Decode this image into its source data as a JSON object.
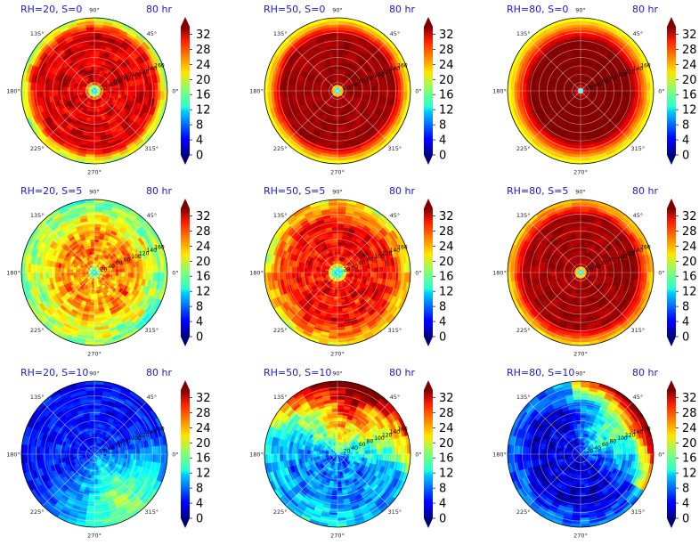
{
  "figure": {
    "colorbar_ticks": [
      0,
      4,
      8,
      12,
      16,
      20,
      24,
      28,
      32
    ],
    "colormap": "jet",
    "vmin": 0,
    "vmax": 34,
    "radial_ticks": [
      20,
      40,
      60,
      80,
      100,
      120,
      140,
      160
    ],
    "radial_max": 175,
    "angle_ticks": [
      "0°",
      "45°",
      "90°",
      "135°",
      "180°",
      "225°",
      "270°",
      "315°"
    ]
  },
  "chart_data": [
    {
      "type": "heatmap",
      "projection": "polar",
      "title": "RH=20, S=0",
      "time_label": "80 hr",
      "pattern": {
        "eye": 8,
        "inner": 22,
        "peak": 0,
        "ring_out": 145,
        "peak_val": 31,
        "out_val": 18,
        "noise": 4
      }
    },
    {
      "type": "heatmap",
      "projection": "polar",
      "title": "RH=50, S=0",
      "time_label": "80 hr",
      "pattern": {
        "eye": 6,
        "inner": 16,
        "peak": 0,
        "ring_out": 135,
        "peak_val": 33,
        "out_val": 20,
        "noise": 1.5
      }
    },
    {
      "type": "heatmap",
      "projection": "polar",
      "title": "RH=80, S=0",
      "time_label": "80 hr",
      "pattern": {
        "eye": 4,
        "inner": 12,
        "peak": 0,
        "ring_out": 120,
        "peak_val": 34,
        "out_val": 20,
        "noise": 1
      }
    },
    {
      "type": "heatmap",
      "projection": "polar",
      "title": "RH=20, S=5",
      "time_label": "80 hr",
      "pattern": {
        "eye": 6,
        "inner": 20,
        "peak": 0,
        "ring_out": 85,
        "peak_val": 25,
        "out_val": 16,
        "noise": 6
      }
    },
    {
      "type": "heatmap",
      "projection": "polar",
      "title": "RH=50, S=5",
      "time_label": "80 hr",
      "pattern": {
        "eye": 10,
        "inner": 28,
        "peak": 0,
        "ring_out": 120,
        "peak_val": 30,
        "out_val": 21,
        "noise": 5
      }
    },
    {
      "type": "heatmap",
      "projection": "polar",
      "title": "RH=80, S=5",
      "time_label": "80 hr",
      "pattern": {
        "eye": 6,
        "inner": 16,
        "peak": 0,
        "ring_out": 135,
        "peak_val": 33,
        "out_val": 22,
        "noise": 2
      }
    },
    {
      "type": "heatmap",
      "projection": "polar",
      "title": "RH=20, S=10",
      "time_label": "80 hr",
      "pattern": {
        "base": 5,
        "quad": 13,
        "qang": 300,
        "qspread": 55,
        "noise": 4,
        "rim": 0
      }
    },
    {
      "type": "heatmap",
      "projection": "polar",
      "title": "RH=50, S=10",
      "time_label": "80 hr",
      "pattern": {
        "base": 8,
        "quad": 22,
        "qang": 75,
        "qspread": 65,
        "noise": 6,
        "rim": 10
      }
    },
    {
      "type": "heatmap",
      "projection": "polar",
      "title": "RH=80, S=10",
      "time_label": "80 hr",
      "pattern": {
        "base": 3,
        "quad": 16,
        "qang": 35,
        "qspread": 50,
        "noise": 5,
        "rim": 18
      }
    }
  ]
}
